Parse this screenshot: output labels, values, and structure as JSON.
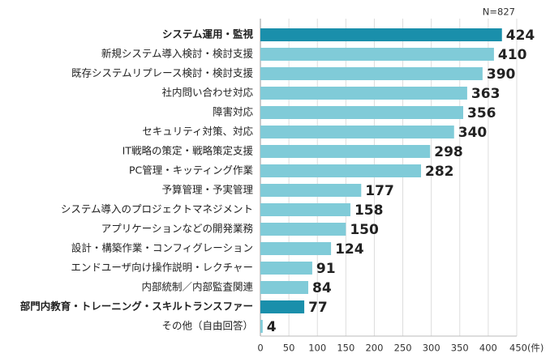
{
  "chart_data": {
    "type": "bar",
    "orientation": "horizontal",
    "note": "N=827",
    "categories": [
      "システム運用・監視",
      "新規システム導入検討・検討支援",
      "既存システムリプレース検討・検討支援",
      "社内問い合わせ対応",
      "障害対応",
      "セキュリティ対策、対応",
      "IT戦略の策定・戦略策定支援",
      "PC管理・キッティング作業",
      "予算管理・予実管理",
      "システム導入のプロジェクトマネジメント",
      "アプリケーションなどの開発業務",
      "設計・構築作業・コンフィグレーション",
      "エンドユーザ向け操作説明・レクチャー",
      "内部統制／内部監査関連",
      "部門内教育・トレーニング・スキルトランスファー",
      "その他（自由回答）"
    ],
    "values": [
      424,
      410,
      390,
      363,
      356,
      340,
      298,
      282,
      177,
      158,
      150,
      124,
      91,
      84,
      77,
      4
    ],
    "color": "#80cbd8",
    "highlight_color": "#1a8fab",
    "highlighted": [
      "システム運用・監視",
      "部門内教育・トレーニング・スキルトランスファー"
    ],
    "xlim": [
      0,
      450
    ],
    "xticks": [
      0,
      50,
      100,
      150,
      200,
      250,
      300,
      350,
      400,
      {
        "value": 450,
        "label": "450(件)"
      }
    ],
    "grid": true
  }
}
